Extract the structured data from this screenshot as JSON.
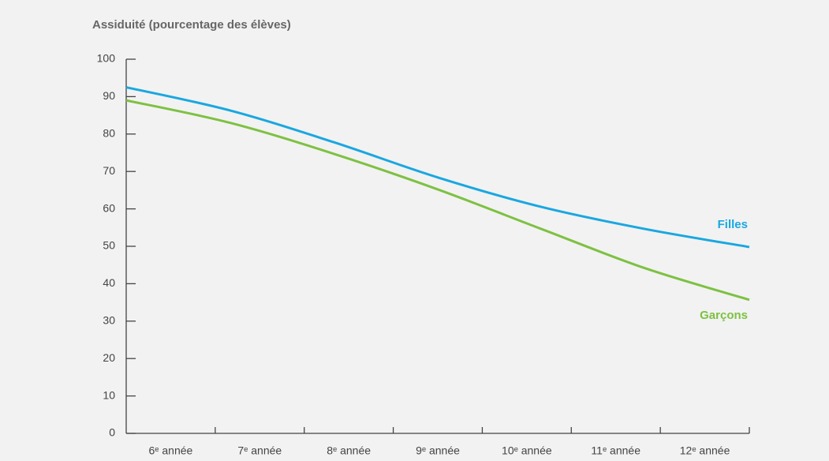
{
  "chart_data": {
    "type": "line",
    "title": "Assiduité (pourcentage des élèves)",
    "categories": [
      "6ᵉ année",
      "7ᵉ année",
      "8ᵉ année",
      "9ᵉ année",
      "10ᵉ année",
      "11ᵉ année",
      "12ᵉ année"
    ],
    "series": [
      {
        "name": "Filles",
        "color": "#1aa7e0",
        "values": [
          92.5,
          86.3,
          77.8,
          68.4,
          60.5,
          54.6,
          49.8
        ]
      },
      {
        "name": "Garçons",
        "color": "#7dc142",
        "values": [
          89,
          83,
          74.7,
          65.2,
          54.6,
          44.1,
          35.7
        ]
      }
    ],
    "ylim": [
      0,
      100
    ],
    "yticks": [
      0,
      10,
      20,
      30,
      40,
      50,
      60,
      70,
      80,
      90,
      100
    ]
  }
}
